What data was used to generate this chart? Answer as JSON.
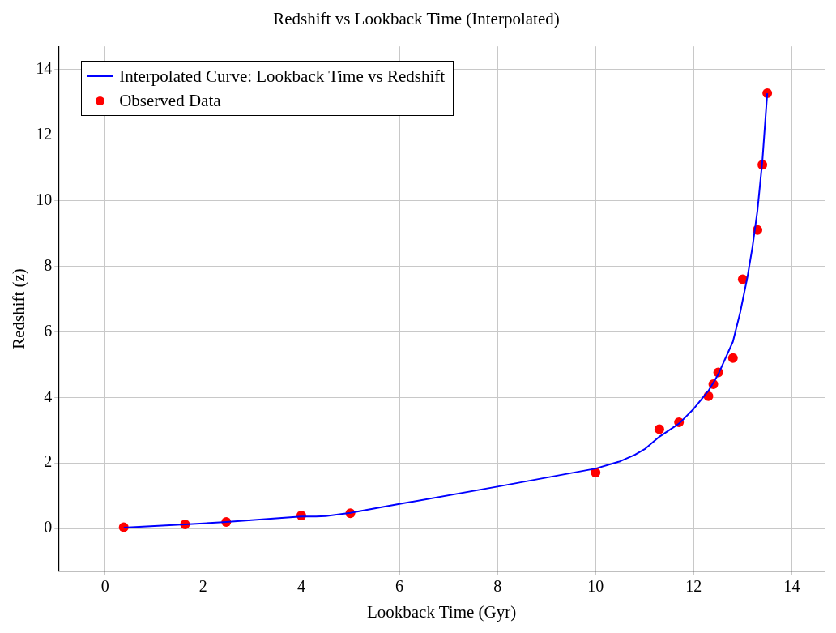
{
  "chart_data": {
    "type": "line",
    "title": "Redshift vs Lookback Time (Interpolated)",
    "xlabel": "Lookback Time (Gyr)",
    "ylabel": "Redshift (z)",
    "xlim": [
      -0.95,
      14.67
    ],
    "ylim": [
      -1.3,
      14.7
    ],
    "xticks": [
      0,
      2,
      4,
      6,
      8,
      10,
      12,
      14
    ],
    "yticks": [
      0,
      2,
      4,
      6,
      8,
      10,
      12,
      14
    ],
    "grid": true,
    "legend": "top left",
    "series": [
      {
        "name": "Interpolated Curve: Lookback Time vs Redshift",
        "color": "#0000ff",
        "marker": "none",
        "x": [
          0.38,
          1.63,
          2.47,
          4.0,
          4.3,
          4.5,
          5.0,
          6.0,
          8.0,
          10.0,
          10.5,
          10.8,
          11.0,
          11.3,
          11.7,
          12.0,
          12.3,
          12.5,
          12.8,
          12.95,
          13.1,
          13.2,
          13.3,
          13.4,
          13.5
        ],
        "values": [
          0.03,
          0.13,
          0.2,
          0.37,
          0.37,
          0.38,
          0.48,
          0.75,
          1.28,
          1.83,
          2.05,
          2.25,
          2.42,
          2.8,
          3.2,
          3.65,
          4.2,
          4.7,
          5.7,
          6.6,
          7.7,
          8.6,
          9.7,
          11.2,
          13.27
        ]
      },
      {
        "name": "Observed Data",
        "type": "scatter",
        "color": "#ff0000",
        "marker": "circle",
        "x": [
          0.38,
          1.63,
          2.47,
          4.0,
          5.0,
          10.0,
          11.3,
          11.7,
          12.3,
          12.4,
          12.5,
          12.8,
          13.0,
          13.3,
          13.4,
          13.5
        ],
        "values": [
          0.04,
          0.13,
          0.2,
          0.4,
          0.47,
          1.71,
          3.03,
          3.24,
          4.04,
          4.4,
          4.76,
          5.2,
          7.6,
          9.1,
          11.09,
          13.27
        ]
      }
    ]
  }
}
